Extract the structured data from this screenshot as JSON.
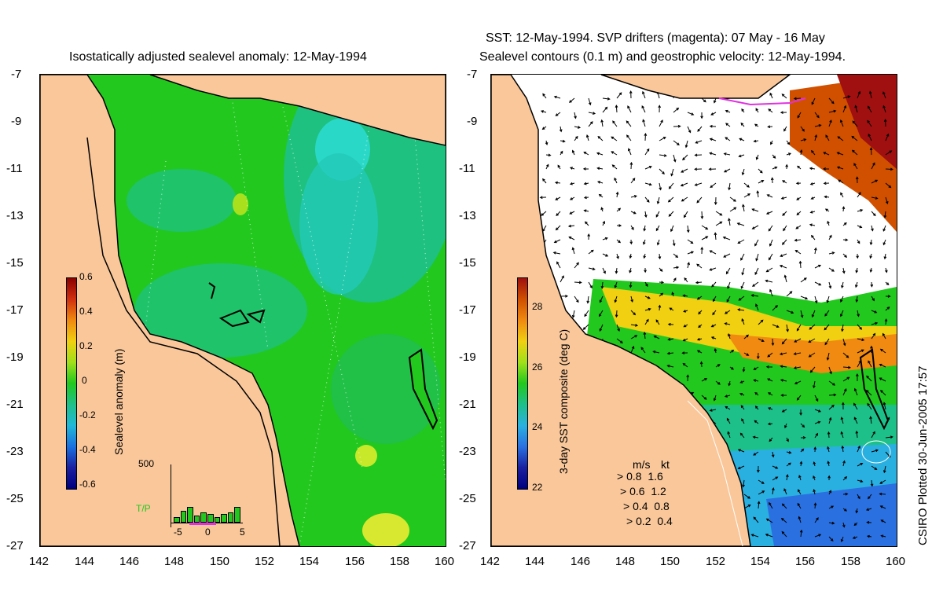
{
  "left_panel": {
    "title": "Isostatically adjusted sealevel anomaly: 12-May-1994",
    "colorbar": {
      "label": "Sealevel anomaly (m)",
      "ticks": [
        "0.6",
        "0.4",
        "0.2",
        "0",
        "-0.2",
        "-0.4",
        "-0.6"
      ],
      "range": [
        -0.6,
        0.6
      ]
    },
    "inset": {
      "y_label": "500",
      "series_label": "T/P",
      "x_ticks": [
        "-5",
        "0",
        "5"
      ],
      "bar_values": [
        30,
        70,
        90,
        40,
        60,
        50,
        30,
        50,
        60,
        90
      ]
    }
  },
  "right_panel": {
    "title_line1": "SST: 12-May-1994. SVP drifters (magenta): 07 May - 16 May",
    "title_line2": "Sealevel contours (0.1 m) and geostrophic velocity: 12-May-1994.",
    "colorbar": {
      "label": "3-day SST composite (deg C)",
      "ticks": [
        "28",
        "26",
        "24",
        "22"
      ],
      "range": [
        22,
        29
      ]
    },
    "velocity_legend": {
      "header_ms": "m/s",
      "header_kt": "kt",
      "rows": [
        {
          "ms": "0.8",
          "kt": "1.6"
        },
        {
          "ms": "0.6",
          "kt": "1.2"
        },
        {
          "ms": "0.4",
          "kt": "0.8"
        },
        {
          "ms": "0.2",
          "kt": "0.4"
        }
      ]
    }
  },
  "axes": {
    "y_ticks": [
      "-7",
      "-9",
      "-11",
      "-13",
      "-15",
      "-17",
      "-19",
      "-21",
      "-23",
      "-25",
      "-27"
    ],
    "x_ticks": [
      "142",
      "144",
      "146",
      "148",
      "150",
      "152",
      "154",
      "156",
      "158",
      "160"
    ],
    "lat_range": [
      -27,
      -7
    ],
    "lon_range": [
      142,
      160
    ]
  },
  "credit": "CSIRO Plotted 30-Jun-2005 17:57",
  "colors": {
    "land": "#f9c79a",
    "ocean_green": "#22c81e",
    "ocean_teal": "#1ec08a",
    "ocean_cyan": "#2ad8c8",
    "sst_warm": "#d05000",
    "sst_cool": "#2a70e0"
  }
}
